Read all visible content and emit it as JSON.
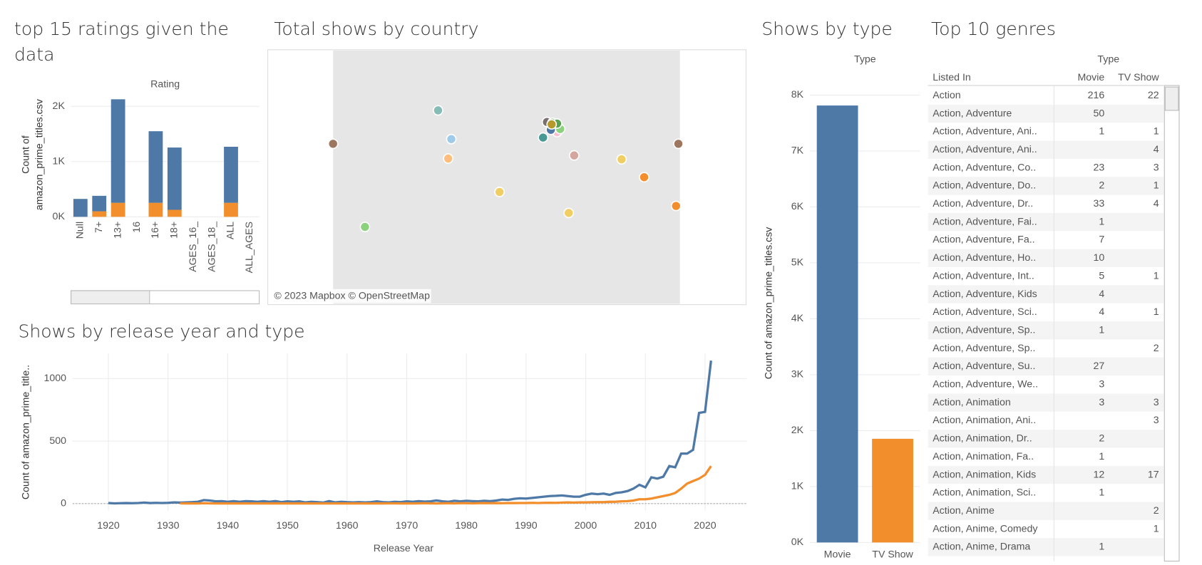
{
  "chart_data": [
    {
      "type": "bar",
      "title": "top 15 ratings given the data",
      "header": "Rating",
      "y_label": "Count of amazon_prime_titles.csv",
      "categories": [
        "Null",
        "7+",
        "13+",
        "16",
        "16+",
        "18+",
        "AGES_16_",
        "AGES_18_",
        "ALL",
        "ALL_AGES"
      ],
      "series": [
        {
          "name": "TV Show",
          "color": "#f28e2b",
          "values": [
            null,
            100,
            254,
            null,
            254,
            127,
            null,
            null,
            254,
            null
          ]
        },
        {
          "name": "Movie",
          "color": "#4e79a7",
          "values": [
            324,
            280,
            1873,
            null,
            1295,
            1127,
            null,
            null,
            1014,
            null
          ]
        }
      ],
      "ylim": [
        0,
        2250
      ],
      "yticks": [
        {
          "value": 0,
          "label": "0K"
        },
        {
          "value": 1000,
          "label": "1K"
        },
        {
          "value": 2000,
          "label": "2K"
        }
      ],
      "grid": true
    },
    {
      "type": "map",
      "title": "Total shows by country",
      "attribution": "© 2023 Mapbox © OpenStreetMap"
    },
    {
      "type": "line",
      "title": "Shows by release year and type",
      "x_label": "Release Year",
      "y_label": "Count of amazon_prime_title..",
      "x": [
        1920,
        1921,
        1922,
        1923,
        1924,
        1925,
        1926,
        1927,
        1928,
        1929,
        1930,
        1931,
        1932,
        1933,
        1934,
        1935,
        1936,
        1937,
        1938,
        1939,
        1940,
        1941,
        1942,
        1943,
        1944,
        1945,
        1946,
        1947,
        1948,
        1949,
        1950,
        1951,
        1952,
        1953,
        1954,
        1955,
        1956,
        1957,
        1958,
        1959,
        1960,
        1961,
        1962,
        1963,
        1964,
        1965,
        1966,
        1967,
        1968,
        1969,
        1970,
        1971,
        1972,
        1973,
        1974,
        1975,
        1976,
        1977,
        1978,
        1979,
        1980,
        1981,
        1982,
        1983,
        1984,
        1985,
        1986,
        1987,
        1988,
        1989,
        1990,
        1991,
        1992,
        1993,
        1994,
        1995,
        1996,
        1997,
        1998,
        1999,
        2000,
        2001,
        2002,
        2003,
        2004,
        2005,
        2006,
        2007,
        2008,
        2009,
        2010,
        2011,
        2012,
        2013,
        2014,
        2015,
        2016,
        2017,
        2018,
        2019,
        2020,
        2021
      ],
      "series": [
        {
          "name": "Movie",
          "color": "#4e79a7",
          "values": [
            5,
            2,
            3,
            4,
            3,
            5,
            8,
            4,
            6,
            5,
            6,
            10,
            8,
            10,
            12,
            15,
            28,
            25,
            18,
            20,
            15,
            20,
            15,
            20,
            18,
            15,
            20,
            15,
            20,
            12,
            18,
            15,
            18,
            10,
            15,
            12,
            8,
            20,
            10,
            15,
            12,
            10,
            12,
            10,
            12,
            18,
            12,
            10,
            14,
            12,
            18,
            15,
            20,
            16,
            18,
            25,
            18,
            15,
            22,
            18,
            22,
            20,
            18,
            22,
            20,
            25,
            32,
            30,
            38,
            42,
            40,
            45,
            50,
            55,
            60,
            62,
            65,
            60,
            55,
            55,
            70,
            80,
            75,
            80,
            70,
            85,
            90,
            100,
            120,
            150,
            130,
            210,
            200,
            215,
            300,
            290,
            400,
            400,
            430,
            725,
            733,
            1143
          ]
        },
        {
          "name": "TV Show",
          "color": "#f28e2b",
          "values": [
            null,
            null,
            null,
            null,
            null,
            null,
            null,
            null,
            null,
            null,
            null,
            null,
            2,
            1,
            2,
            1,
            3,
            2,
            1,
            2,
            1,
            2,
            1,
            2,
            1,
            1,
            2,
            1,
            2,
            1,
            2,
            1,
            2,
            1,
            2,
            1,
            2,
            1,
            1,
            2,
            1,
            2,
            1,
            2,
            1,
            2,
            1,
            2,
            2,
            1,
            2,
            1,
            2,
            3,
            2,
            1,
            2,
            3,
            2,
            3,
            3,
            2,
            3,
            4,
            3,
            4,
            3,
            5,
            4,
            5,
            5,
            6,
            5,
            6,
            7,
            6,
            8,
            10,
            8,
            10,
            10,
            11,
            12,
            12,
            14,
            15,
            18,
            20,
            25,
            35,
            35,
            40,
            50,
            60,
            70,
            85,
            120,
            160,
            180,
            200,
            230,
            300
          ]
        }
      ],
      "xlim": [
        1914,
        2027
      ],
      "xticks": [
        1920,
        1930,
        1940,
        1950,
        1960,
        1970,
        1980,
        1990,
        2000,
        2010,
        2020
      ],
      "ylim": [
        -56,
        1199
      ],
      "yticks": [
        0,
        500,
        1000
      ],
      "grid": true
    },
    {
      "type": "bar",
      "title": "Shows by type",
      "header": "Type",
      "y_label": "Count of amazon_prime_titles.csv",
      "categories": [
        "Movie",
        "TV Show"
      ],
      "values": [
        7814,
        1854
      ],
      "colors": [
        "#4e79a7",
        "#f28e2b"
      ],
      "ylim": [
        0,
        8450
      ],
      "yticks": [
        {
          "value": 0,
          "label": "0K"
        },
        {
          "value": 1000,
          "label": "1K"
        },
        {
          "value": 2000,
          "label": "2K"
        },
        {
          "value": 3000,
          "label": "3K"
        },
        {
          "value": 4000,
          "label": "4K"
        },
        {
          "value": 5000,
          "label": "5K"
        },
        {
          "value": 6000,
          "label": "6K"
        },
        {
          "value": 7000,
          "label": "7K"
        },
        {
          "value": 8000,
          "label": "8K"
        }
      ],
      "grid": true
    }
  ],
  "table": {
    "title": "Top 10 genres",
    "header": "Type",
    "columns": [
      "Listed In",
      "Movie",
      "TV Show"
    ],
    "rows": [
      [
        "Action",
        216,
        22
      ],
      [
        "Action, Adventure",
        50,
        null
      ],
      [
        "Action, Adventure, Ani..",
        1,
        1
      ],
      [
        "Action, Adventure, Ani..",
        null,
        4
      ],
      [
        "Action, Adventure, Co..",
        23,
        3
      ],
      [
        "Action, Adventure, Do..",
        2,
        1
      ],
      [
        "Action, Adventure, Dr..",
        33,
        4
      ],
      [
        "Action, Adventure, Fai..",
        1,
        null
      ],
      [
        "Action, Adventure, Fa..",
        7,
        null
      ],
      [
        "Action, Adventure, Ho..",
        10,
        null
      ],
      [
        "Action, Adventure, Int..",
        5,
        1
      ],
      [
        "Action, Adventure, Kids",
        4,
        null
      ],
      [
        "Action, Adventure, Sci..",
        4,
        1
      ],
      [
        "Action, Adventure, Sp..",
        1,
        null
      ],
      [
        "Action, Adventure, Sp..",
        null,
        2
      ],
      [
        "Action, Adventure, Su..",
        27,
        null
      ],
      [
        "Action, Adventure, We..",
        3,
        null
      ],
      [
        "Action, Animation",
        3,
        3
      ],
      [
        "Action, Animation, Ani..",
        null,
        3
      ],
      [
        "Action, Animation, Dr..",
        2,
        null
      ],
      [
        "Action, Animation, Fa..",
        1,
        null
      ],
      [
        "Action, Animation, Kids",
        12,
        17
      ],
      [
        "Action, Animation, Sci..",
        1,
        null
      ],
      [
        "Action, Anime",
        null,
        2
      ],
      [
        "Action, Anime, Comedy",
        null,
        1
      ],
      [
        "Action, Anime, Drama",
        1,
        null
      ]
    ]
  }
}
